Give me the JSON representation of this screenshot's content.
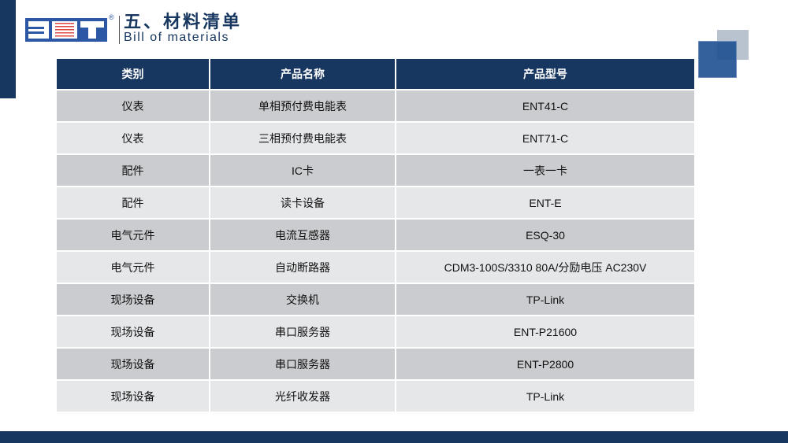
{
  "header": {
    "title": "五、材料清单",
    "subtitle": "Bill of materials",
    "logo_text": "ENT",
    "registered_mark": "®"
  },
  "colors": {
    "navy": "#183760",
    "blue": "#2b57a4",
    "row_dark": "#cbcccf",
    "row_light": "#e6e7e9"
  },
  "table": {
    "columns": [
      "类别",
      "产品名称",
      "产品型号"
    ],
    "rows": [
      [
        "仪表",
        "单相预付费电能表",
        "ENT41-C"
      ],
      [
        "仪表",
        "三相预付费电能表",
        "ENT71-C"
      ],
      [
        "配件",
        "IC卡",
        "一表一卡"
      ],
      [
        "配件",
        "读卡设备",
        "ENT-E"
      ],
      [
        "电气元件",
        "电流互感器",
        "ESQ-30"
      ],
      [
        "电气元件",
        "自动断路器",
        "CDM3-100S/3310 80A/分励电压 AC230V"
      ],
      [
        "现场设备",
        "交换机",
        "TP-Link"
      ],
      [
        "现场设备",
        "串口服务器",
        "ENT-P21600"
      ],
      [
        "现场设备",
        "串口服务器",
        "ENT-P2800"
      ],
      [
        "现场设备",
        "光纤收发器",
        "TP-Link"
      ]
    ]
  }
}
